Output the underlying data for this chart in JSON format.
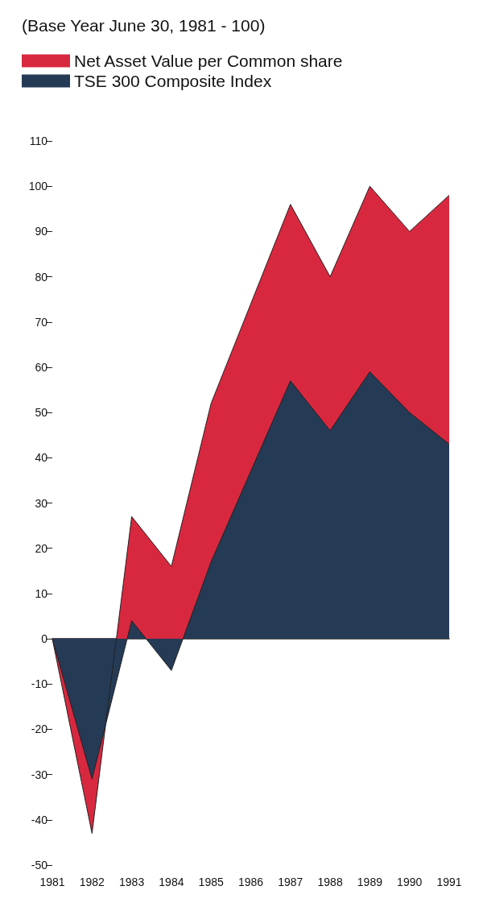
{
  "chart_data": {
    "type": "area",
    "title": "(Base Year June 30, 1981 - 100)",
    "categories": [
      "1981",
      "1982",
      "1983",
      "1984",
      "1985",
      "1986",
      "1987",
      "1988",
      "1989",
      "1990",
      "1991"
    ],
    "series": [
      {
        "name": "Net Asset Value per Common share",
        "color": "#d8283f",
        "values": [
          0,
          -43,
          27,
          16,
          52,
          74,
          96,
          80,
          100,
          90,
          98
        ]
      },
      {
        "name": "TSE 300 Composite Index",
        "color": "#253a55",
        "values": [
          0,
          -31,
          4,
          -7,
          17,
          37,
          57,
          46,
          59,
          50,
          43
        ]
      }
    ],
    "ylim": [
      -50,
      110
    ],
    "yticks": [
      -50,
      -40,
      -30,
      -20,
      -10,
      0,
      10,
      20,
      30,
      40,
      50,
      60,
      70,
      80,
      90,
      100,
      110
    ],
    "legend": "top left"
  }
}
